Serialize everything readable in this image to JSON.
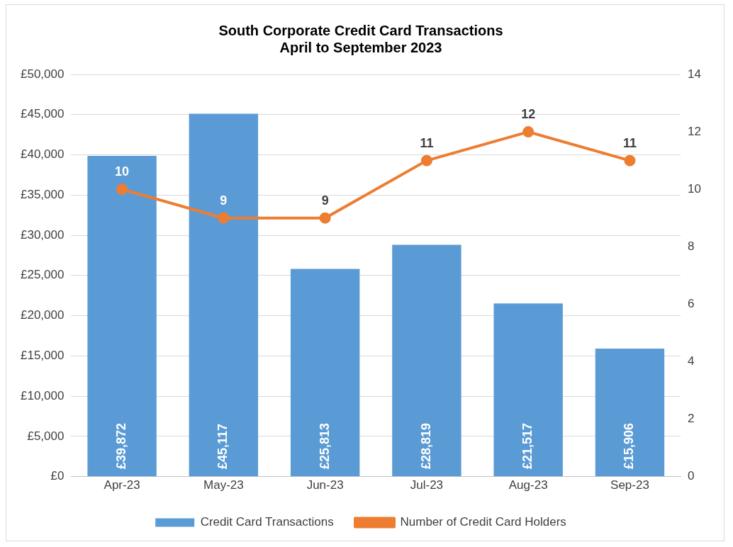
{
  "chart_data": {
    "type": "bar",
    "title": "South Corporate Credit Card Transactions\nApril to September 2023",
    "categories": [
      "Apr-23",
      "May-23",
      "Jun-23",
      "Jul-23",
      "Aug-23",
      "Sep-23"
    ],
    "series": [
      {
        "name": "Credit Card Transactions",
        "color": "#5b9bd5",
        "values": [
          39872,
          45117,
          25813,
          28819,
          21517,
          15906
        ],
        "value_labels": [
          "£39,872",
          "£45,117",
          "£25,813",
          "£28,819",
          "£21,517",
          "£15,906"
        ]
      },
      {
        "name": "Number of Credit Card Holders",
        "type": "line",
        "axis": "y2",
        "color": "#ed7d31",
        "values": [
          10,
          9,
          9,
          11,
          12,
          11
        ],
        "value_labels": [
          "10",
          "9",
          "9",
          "11",
          "12",
          "11"
        ]
      }
    ],
    "ylim": [
      0,
      50000
    ],
    "yticks": [
      {
        "value": 0,
        "label": "£0"
      },
      {
        "value": 5000,
        "label": "£5,000"
      },
      {
        "value": 10000,
        "label": "£10,000"
      },
      {
        "value": 15000,
        "label": "£15,000"
      },
      {
        "value": 20000,
        "label": "£20,000"
      },
      {
        "value": 25000,
        "label": "£25,000"
      },
      {
        "value": 30000,
        "label": "£30,000"
      },
      {
        "value": 35000,
        "label": "£35,000"
      },
      {
        "value": 40000,
        "label": "£40,000"
      },
      {
        "value": 45000,
        "label": "£45,000"
      },
      {
        "value": 50000,
        "label": "£50,000"
      }
    ],
    "y2lim": [
      0,
      14
    ],
    "y2ticks": [
      0,
      2,
      4,
      6,
      8,
      10,
      12,
      14
    ],
    "grid": "y",
    "legend": "bottom",
    "marker": "circle",
    "line_style": "solid"
  }
}
